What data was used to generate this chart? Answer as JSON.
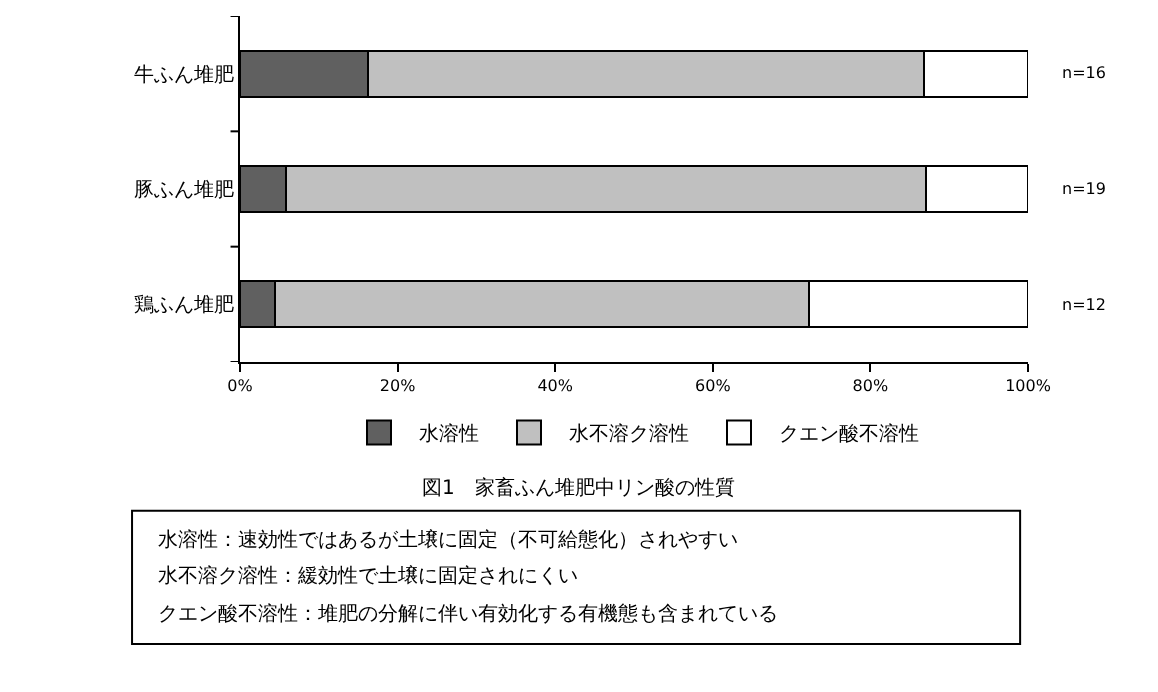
{
  "chart_data": {
    "type": "bar",
    "orientation": "horizontal",
    "stacked": true,
    "categories": [
      "牛ふん堆肥",
      "豚ふん堆肥",
      "鶏ふん堆肥"
    ],
    "series": [
      {
        "name": "水溶性",
        "color": "#606060",
        "values": [
          16.2,
          5.8,
          4.4
        ]
      },
      {
        "name": "水不溶ク溶性",
        "color": "#c0c0c0",
        "values": [
          70.6,
          81.3,
          67.8
        ]
      },
      {
        "name": "クエン酸不溶性",
        "color": "#ffffff",
        "values": [
          13.2,
          12.9,
          27.8
        ]
      }
    ],
    "xlim": [
      0,
      100
    ],
    "xticks": [
      {
        "value": 0,
        "label": "0%"
      },
      {
        "value": 20,
        "label": "20%"
      },
      {
        "value": 40,
        "label": "40%"
      },
      {
        "value": 60,
        "label": "60%"
      },
      {
        "value": 80,
        "label": "80%"
      },
      {
        "value": 100,
        "label": "100%"
      }
    ],
    "legend": "bottom",
    "annotations": [
      "n=16",
      "n=19",
      "n=12",
      "図1　家畜ふん堆肥中リン酸の性質",
      "水溶性：速効性ではあるが土壌に固定（不可給態化）されやすい",
      "水不溶ク溶性：緩効性で土壌に固定されにくい",
      "クエン酸不溶性：堆肥の分解に伴い有効化する有機態も含まれている"
    ]
  }
}
